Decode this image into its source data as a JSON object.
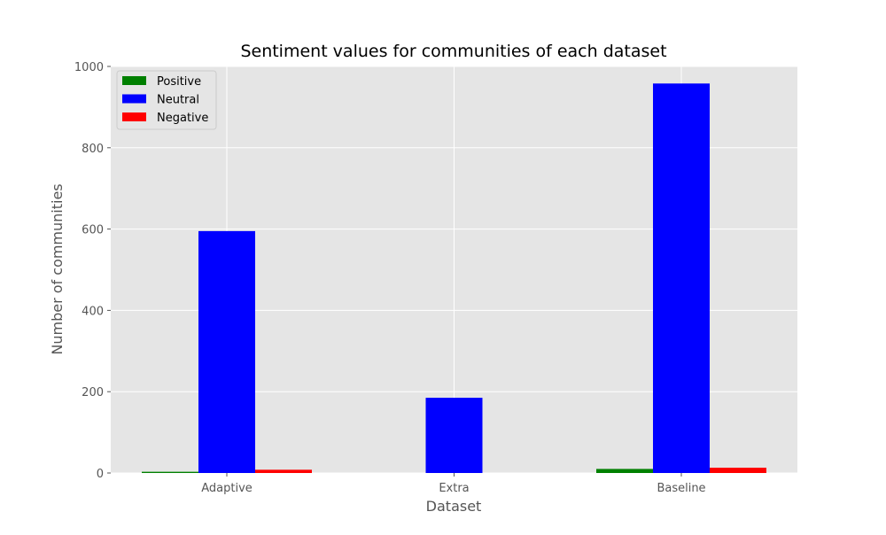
{
  "chart_data": {
    "type": "bar",
    "title": "Sentiment values for communities of each dataset",
    "xlabel": "Dataset",
    "ylabel": "Number of communities",
    "categories": [
      "Adaptive",
      "Extra",
      "Baseline"
    ],
    "series": [
      {
        "name": "Positive",
        "color": "#008000",
        "values": [
          3,
          0,
          10
        ]
      },
      {
        "name": "Neutral",
        "color": "#0000ff",
        "values": [
          595,
          185,
          958
        ]
      },
      {
        "name": "Negative",
        "color": "#ff0000",
        "values": [
          8,
          0,
          13
        ]
      }
    ],
    "ylim": [
      0,
      1000
    ],
    "yticks": [
      0,
      200,
      400,
      600,
      800,
      1000
    ],
    "grid": true,
    "legend_position": "top-left",
    "plot_background": "#e5e5e5",
    "grid_color": "#ffffff"
  }
}
